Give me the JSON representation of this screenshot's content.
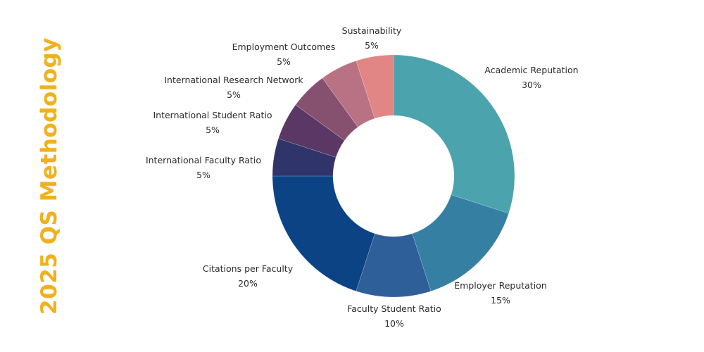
{
  "chart_data": {
    "type": "pie",
    "title": "2025 QS Methodology",
    "donut": true,
    "start": "12 o'clock, clockwise",
    "slices": [
      {
        "label": "Academic Reputation",
        "value": 30,
        "display": "30%",
        "color": "#4aa3ad"
      },
      {
        "label": "Employer Reputation",
        "value": 15,
        "display": "15%",
        "color": "#357fa3"
      },
      {
        "label": "Faculty Student Ratio",
        "value": 10,
        "display": "10%",
        "color": "#2e5f98"
      },
      {
        "label": "Citations per Faculty",
        "value": 20,
        "display": "20%",
        "color": "#0c4385"
      },
      {
        "label": "International Faculty Ratio",
        "value": 5,
        "display": "5%",
        "color": "#2f346a"
      },
      {
        "label": "International Student Ratio",
        "value": 5,
        "display": "5%",
        "color": "#5a3764"
      },
      {
        "label": "International Research Network",
        "value": 5,
        "display": "5%",
        "color": "#86506f"
      },
      {
        "label": "Employment Outcomes",
        "value": 5,
        "display": "5%",
        "color": "#b87284"
      },
      {
        "label": "Sustainability",
        "value": 5,
        "display": "5%",
        "color": "#e28585"
      }
    ]
  },
  "title_color": "#f2b01e"
}
